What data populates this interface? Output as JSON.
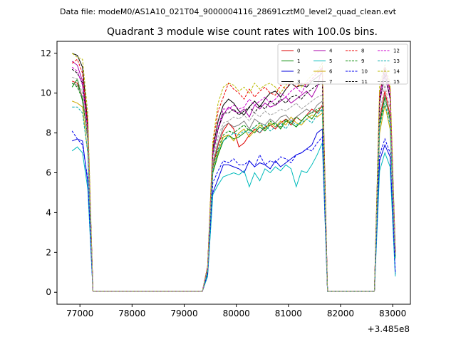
{
  "header": {
    "file_label": "Data file: modeM0/AS1A10_021T04_9000004116_28691cztM0_level2_quad_clean.evt"
  },
  "chart_data": {
    "type": "line",
    "title": "Quadrant 3 module wise count rates with 100.0s bins.",
    "xlabel": "",
    "ylabel": "",
    "x_offset_label": "+3.485e8",
    "xlim": [
      76560,
      83340
    ],
    "ylim": [
      -0.6,
      12.6
    ],
    "xticks": [
      77000,
      78000,
      79000,
      80000,
      81000,
      82000,
      83000
    ],
    "xtick_labels": [
      "77000",
      "78000",
      "79000",
      "80000",
      "81000",
      "82000",
      "83000"
    ],
    "yticks": [
      0,
      2,
      4,
      6,
      8,
      10,
      12
    ],
    "ytick_labels": [
      "0",
      "2",
      "4",
      "6",
      "8",
      "10",
      "12"
    ],
    "grid": false,
    "legend_placement": "top-right",
    "x": [
      76850,
      76950,
      77050,
      77150,
      77250,
      77350,
      77450,
      77550,
      77650,
      77750,
      77850,
      77950,
      78050,
      78150,
      78250,
      78350,
      78450,
      78550,
      78650,
      78750,
      78850,
      78950,
      79050,
      79150,
      79250,
      79350,
      79450,
      79550,
      79650,
      79750,
      79850,
      79950,
      80050,
      80150,
      80250,
      80350,
      80450,
      80550,
      80650,
      80750,
      80850,
      80950,
      81050,
      81150,
      81250,
      81350,
      81450,
      81550,
      81650,
      81750,
      81850,
      81950,
      82050,
      82150,
      82250,
      82350,
      82450,
      82550,
      82650,
      82750,
      82850,
      82950,
      83050
    ],
    "series": [
      {
        "name": "0",
        "color": "#dd0000",
        "dash": "solid",
        "values": [
          10.6,
          10.5,
          9.8,
          7.9,
          0.05,
          0.05,
          0.05,
          0.05,
          0.05,
          0.05,
          0.05,
          0.05,
          0.05,
          0.05,
          0.05,
          0.05,
          0.05,
          0.05,
          0.05,
          0.05,
          0.05,
          0.05,
          0.05,
          0.05,
          0.05,
          0.05,
          1.1,
          6.3,
          7.4,
          8.1,
          8.5,
          8.2,
          7.3,
          7.5,
          7.9,
          8.2,
          8.0,
          8.3,
          8.4,
          8.2,
          8.5,
          8.7,
          8.4,
          8.8,
          8.6,
          8.9,
          9.2,
          9.0,
          9.4,
          0.05,
          0.05,
          0.05,
          0.05,
          0.05,
          0.05,
          0.05,
          0.05,
          0.05,
          0.05,
          8.7,
          10.1,
          8.9,
          1.9
        ]
      },
      {
        "name": "1",
        "color": "#008800",
        "dash": "solid",
        "values": [
          10.3,
          10.7,
          9.6,
          7.8,
          0.05,
          0.05,
          0.05,
          0.05,
          0.05,
          0.05,
          0.05,
          0.05,
          0.05,
          0.05,
          0.05,
          0.05,
          0.05,
          0.05,
          0.05,
          0.05,
          0.05,
          0.05,
          0.05,
          0.05,
          0.05,
          0.05,
          1.1,
          6.0,
          6.9,
          7.6,
          7.9,
          7.7,
          7.8,
          8.0,
          8.2,
          8.0,
          8.3,
          8.1,
          8.4,
          8.5,
          8.2,
          8.6,
          8.5,
          8.3,
          8.6,
          8.9,
          8.7,
          9.1,
          9.1,
          0.05,
          0.05,
          0.05,
          0.05,
          0.05,
          0.05,
          0.05,
          0.05,
          0.05,
          0.05,
          8.4,
          9.8,
          8.7,
          1.9
        ]
      },
      {
        "name": "2",
        "color": "#0000dd",
        "dash": "solid",
        "values": [
          7.6,
          7.7,
          7.6,
          5.5,
          0.05,
          0.05,
          0.05,
          0.05,
          0.05,
          0.05,
          0.05,
          0.05,
          0.05,
          0.05,
          0.05,
          0.05,
          0.05,
          0.05,
          0.05,
          0.05,
          0.05,
          0.05,
          0.05,
          0.05,
          0.05,
          0.05,
          0.9,
          5.0,
          5.7,
          6.4,
          6.4,
          6.3,
          6.2,
          6.0,
          6.6,
          6.3,
          6.5,
          6.4,
          6.2,
          6.6,
          6.3,
          6.5,
          6.7,
          6.9,
          7.0,
          7.2,
          7.4,
          8.0,
          8.2,
          0.05,
          0.05,
          0.05,
          0.05,
          0.05,
          0.05,
          0.05,
          0.05,
          0.05,
          0.05,
          6.6,
          7.4,
          6.8,
          0.9
        ]
      },
      {
        "name": "3",
        "color": "#000000",
        "dash": "solid",
        "values": [
          12.0,
          11.9,
          11.3,
          8.5,
          0.05,
          0.05,
          0.05,
          0.05,
          0.05,
          0.05,
          0.05,
          0.05,
          0.05,
          0.05,
          0.05,
          0.05,
          0.05,
          0.05,
          0.05,
          0.05,
          0.05,
          0.05,
          0.05,
          0.05,
          0.05,
          0.05,
          1.3,
          7.2,
          8.6,
          9.4,
          9.7,
          9.5,
          9.1,
          8.9,
          9.3,
          9.6,
          9.3,
          9.7,
          10.0,
          10.1,
          9.8,
          10.2,
          10.5,
          10.3,
          10.4,
          10.3,
          10.6,
          10.8,
          11.0,
          0.05,
          0.05,
          0.05,
          0.05,
          0.05,
          0.05,
          0.05,
          0.05,
          0.05,
          0.05,
          9.9,
          11.3,
          10.1,
          2.1
        ]
      },
      {
        "name": "4",
        "color": "#aa00aa",
        "dash": "solid",
        "values": [
          11.6,
          11.4,
          10.6,
          8.3,
          0.05,
          0.05,
          0.05,
          0.05,
          0.05,
          0.05,
          0.05,
          0.05,
          0.05,
          0.05,
          0.05,
          0.05,
          0.05,
          0.05,
          0.05,
          0.05,
          0.05,
          0.05,
          0.05,
          0.05,
          0.05,
          0.05,
          1.3,
          6.9,
          8.2,
          8.9,
          9.3,
          9.1,
          9.0,
          9.2,
          8.8,
          9.4,
          9.2,
          9.5,
          9.3,
          9.4,
          9.6,
          9.8,
          9.5,
          9.7,
          9.9,
          10.1,
          9.8,
          10.3,
          11.3,
          0.05,
          0.05,
          0.05,
          0.05,
          0.05,
          0.05,
          0.05,
          0.05,
          0.05,
          0.05,
          9.5,
          10.9,
          9.7,
          2.0
        ]
      },
      {
        "name": "5",
        "color": "#00bbbb",
        "dash": "solid",
        "values": [
          7.1,
          7.3,
          7.0,
          5.2,
          0.05,
          0.05,
          0.05,
          0.05,
          0.05,
          0.05,
          0.05,
          0.05,
          0.05,
          0.05,
          0.05,
          0.05,
          0.05,
          0.05,
          0.05,
          0.05,
          0.05,
          0.05,
          0.05,
          0.05,
          0.05,
          0.05,
          0.8,
          4.9,
          5.4,
          5.8,
          5.9,
          6.0,
          5.9,
          6.1,
          5.3,
          6.0,
          5.6,
          6.2,
          6.0,
          6.3,
          6.1,
          6.4,
          6.2,
          5.3,
          6.1,
          6.0,
          6.4,
          6.9,
          7.5,
          0.05,
          0.05,
          0.05,
          0.05,
          0.05,
          0.05,
          0.05,
          0.05,
          0.05,
          0.05,
          6.1,
          7.0,
          6.3,
          0.8
        ]
      },
      {
        "name": "6",
        "color": "#ccaa00",
        "dash": "solid",
        "values": [
          9.6,
          9.5,
          9.3,
          7.0,
          0.05,
          0.05,
          0.05,
          0.05,
          0.05,
          0.05,
          0.05,
          0.05,
          0.05,
          0.05,
          0.05,
          0.05,
          0.05,
          0.05,
          0.05,
          0.05,
          0.05,
          0.05,
          0.05,
          0.05,
          0.05,
          0.05,
          1.0,
          6.1,
          7.0,
          7.8,
          7.9,
          7.6,
          8.0,
          8.2,
          7.8,
          8.1,
          8.4,
          8.2,
          8.5,
          8.3,
          8.6,
          8.4,
          8.8,
          8.5,
          8.4,
          8.7,
          8.9,
          8.8,
          9.0,
          0.05,
          0.05,
          0.05,
          0.05,
          0.05,
          0.05,
          0.05,
          0.05,
          0.05,
          0.05,
          8.0,
          9.4,
          8.2,
          1.7
        ]
      },
      {
        "name": "7",
        "color": "#808080",
        "dash": "solid",
        "values": [
          10.5,
          10.4,
          9.8,
          7.6,
          0.05,
          0.05,
          0.05,
          0.05,
          0.05,
          0.05,
          0.05,
          0.05,
          0.05,
          0.05,
          0.05,
          0.05,
          0.05,
          0.05,
          0.05,
          0.05,
          0.05,
          0.05,
          0.05,
          0.05,
          0.05,
          0.05,
          1.1,
          6.5,
          7.5,
          8.3,
          8.5,
          8.3,
          8.4,
          8.6,
          8.2,
          8.7,
          8.5,
          8.4,
          8.7,
          8.5,
          8.8,
          8.9,
          8.6,
          8.8,
          9.0,
          9.2,
          9.0,
          9.4,
          9.6,
          0.05,
          0.05,
          0.05,
          0.05,
          0.05,
          0.05,
          0.05,
          0.05,
          0.05,
          0.05,
          8.5,
          9.9,
          8.6,
          1.8
        ]
      },
      {
        "name": "8",
        "color": "#ee0000",
        "dash": "dashed",
        "values": [
          11.5,
          11.7,
          11.0,
          8.4,
          0.05,
          0.05,
          0.05,
          0.05,
          0.05,
          0.05,
          0.05,
          0.05,
          0.05,
          0.05,
          0.05,
          0.05,
          0.05,
          0.05,
          0.05,
          0.05,
          0.05,
          0.05,
          0.05,
          0.05,
          0.05,
          0.05,
          1.3,
          7.4,
          9.1,
          9.8,
          10.5,
          10.2,
          10.0,
          9.7,
          10.2,
          9.8,
          10.1,
          10.3,
          10.0,
          9.9,
          10.4,
          10.2,
          10.6,
          10.3,
          10.5,
          10.4,
          10.7,
          11.0,
          11.3,
          0.05,
          0.05,
          0.05,
          0.05,
          0.05,
          0.05,
          0.05,
          0.05,
          0.05,
          0.05,
          10.0,
          11.2,
          10.2,
          2.0
        ]
      },
      {
        "name": "9",
        "color": "#008800",
        "dash": "dashed",
        "values": [
          10.5,
          10.3,
          9.7,
          7.7,
          0.05,
          0.05,
          0.05,
          0.05,
          0.05,
          0.05,
          0.05,
          0.05,
          0.05,
          0.05,
          0.05,
          0.05,
          0.05,
          0.05,
          0.05,
          0.05,
          0.05,
          0.05,
          0.05,
          0.05,
          0.05,
          0.05,
          1.1,
          6.3,
          7.2,
          7.9,
          8.1,
          8.0,
          8.2,
          8.4,
          8.1,
          8.3,
          8.5,
          8.2,
          8.6,
          8.4,
          8.3,
          8.7,
          8.5,
          8.8,
          8.6,
          8.9,
          9.0,
          9.2,
          9.3,
          0.05,
          0.05,
          0.05,
          0.05,
          0.05,
          0.05,
          0.05,
          0.05,
          0.05,
          0.05,
          8.5,
          9.8,
          8.7,
          1.8
        ]
      },
      {
        "name": "10",
        "color": "#0000ee",
        "dash": "dashed",
        "values": [
          8.1,
          7.7,
          7.4,
          5.7,
          0.05,
          0.05,
          0.05,
          0.05,
          0.05,
          0.05,
          0.05,
          0.05,
          0.05,
          0.05,
          0.05,
          0.05,
          0.05,
          0.05,
          0.05,
          0.05,
          0.05,
          0.05,
          0.05,
          0.05,
          0.05,
          0.05,
          0.9,
          5.5,
          6.1,
          6.6,
          6.5,
          6.7,
          6.4,
          6.4,
          6.6,
          6.3,
          6.9,
          6.4,
          6.6,
          6.5,
          6.8,
          6.7,
          6.5,
          6.9,
          7.0,
          7.2,
          7.1,
          7.5,
          7.8,
          0.05,
          0.05,
          0.05,
          0.05,
          0.05,
          0.05,
          0.05,
          0.05,
          0.05,
          0.05,
          6.9,
          7.7,
          7.0,
          1.0
        ]
      },
      {
        "name": "11",
        "color": "#000000",
        "dash": "dashed",
        "values": [
          11.2,
          11.0,
          10.5,
          8.2,
          0.05,
          0.05,
          0.05,
          0.05,
          0.05,
          0.05,
          0.05,
          0.05,
          0.05,
          0.05,
          0.05,
          0.05,
          0.05,
          0.05,
          0.05,
          0.05,
          0.05,
          0.05,
          0.05,
          0.05,
          0.05,
          0.05,
          1.2,
          6.9,
          8.2,
          9.0,
          9.0,
          9.2,
          8.9,
          9.1,
          9.3,
          9.0,
          9.4,
          9.2,
          9.6,
          9.4,
          9.7,
          9.5,
          9.8,
          9.9,
          9.7,
          10.0,
          10.2,
          10.4,
          10.5,
          0.05,
          0.05,
          0.05,
          0.05,
          0.05,
          0.05,
          0.05,
          0.05,
          0.05,
          0.05,
          9.6,
          11.0,
          9.8,
          2.0
        ]
      },
      {
        "name": "12",
        "color": "#cc00cc",
        "dash": "dashed",
        "values": [
          11.3,
          11.1,
          10.4,
          8.1,
          0.05,
          0.05,
          0.05,
          0.05,
          0.05,
          0.05,
          0.05,
          0.05,
          0.05,
          0.05,
          0.05,
          0.05,
          0.05,
          0.05,
          0.05,
          0.05,
          0.05,
          0.05,
          0.05,
          0.05,
          0.05,
          0.05,
          1.2,
          7.0,
          8.3,
          9.2,
          9.2,
          9.4,
          9.2,
          9.3,
          9.7,
          9.4,
          9.6,
          9.8,
          9.5,
          9.7,
          10.0,
          9.8,
          10.1,
          10.3,
          10.0,
          10.5,
          10.7,
          11.0,
          11.1,
          0.05,
          0.05,
          0.05,
          0.05,
          0.05,
          0.05,
          0.05,
          0.05,
          0.05,
          0.05,
          9.8,
          11.3,
          10.0,
          2.1
        ]
      },
      {
        "name": "13",
        "color": "#00aaaa",
        "dash": "dashed",
        "values": [
          9.3,
          9.3,
          9.0,
          7.0,
          0.05,
          0.05,
          0.05,
          0.05,
          0.05,
          0.05,
          0.05,
          0.05,
          0.05,
          0.05,
          0.05,
          0.05,
          0.05,
          0.05,
          0.05,
          0.05,
          0.05,
          0.05,
          0.05,
          0.05,
          0.05,
          0.05,
          1.0,
          6.1,
          7.1,
          7.6,
          7.8,
          8.0,
          7.9,
          8.1,
          8.0,
          8.3,
          8.0,
          8.4,
          8.1,
          8.3,
          8.5,
          8.2,
          8.6,
          8.4,
          8.5,
          8.7,
          8.5,
          8.9,
          9.2,
          0.05,
          0.05,
          0.05,
          0.05,
          0.05,
          0.05,
          0.05,
          0.05,
          0.05,
          0.05,
          8.3,
          9.5,
          8.4,
          1.7
        ]
      },
      {
        "name": "14",
        "color": "#bbbb00",
        "dash": "dashed",
        "values": [
          12.0,
          11.8,
          11.7,
          9.0,
          0.05,
          0.05,
          0.05,
          0.05,
          0.05,
          0.05,
          0.05,
          0.05,
          0.05,
          0.05,
          0.05,
          0.05,
          0.05,
          0.05,
          0.05,
          0.05,
          0.05,
          0.05,
          0.05,
          0.05,
          0.05,
          0.05,
          1.3,
          7.6,
          9.5,
          10.3,
          10.5,
          10.4,
          10.1,
          10.3,
          10.0,
          10.5,
          10.2,
          10.4,
          10.5,
          10.3,
          10.0,
          10.4,
          10.6,
          10.5,
          10.3,
          10.6,
          10.9,
          11.1,
          11.5,
          0.05,
          0.05,
          0.05,
          0.05,
          0.05,
          0.05,
          0.05,
          0.05,
          0.05,
          0.05,
          10.4,
          11.4,
          10.5,
          2.2
        ]
      },
      {
        "name": "15",
        "color": "#a0a0a0",
        "dash": "dashed",
        "values": [
          10.8,
          10.7,
          10.0,
          7.8,
          0.05,
          0.05,
          0.05,
          0.05,
          0.05,
          0.05,
          0.05,
          0.05,
          0.05,
          0.05,
          0.05,
          0.05,
          0.05,
          0.05,
          0.05,
          0.05,
          0.05,
          0.05,
          0.05,
          0.05,
          0.05,
          0.05,
          1.2,
          6.6,
          7.8,
          8.5,
          8.6,
          8.8,
          8.7,
          8.9,
          8.6,
          9.0,
          8.8,
          9.1,
          8.9,
          9.0,
          9.2,
          9.1,
          9.3,
          9.5,
          9.2,
          9.4,
          9.6,
          9.8,
          9.9,
          0.05,
          0.05,
          0.05,
          0.05,
          0.05,
          0.05,
          0.05,
          0.05,
          0.05,
          0.05,
          9.0,
          10.4,
          9.2,
          1.9
        ]
      }
    ]
  }
}
